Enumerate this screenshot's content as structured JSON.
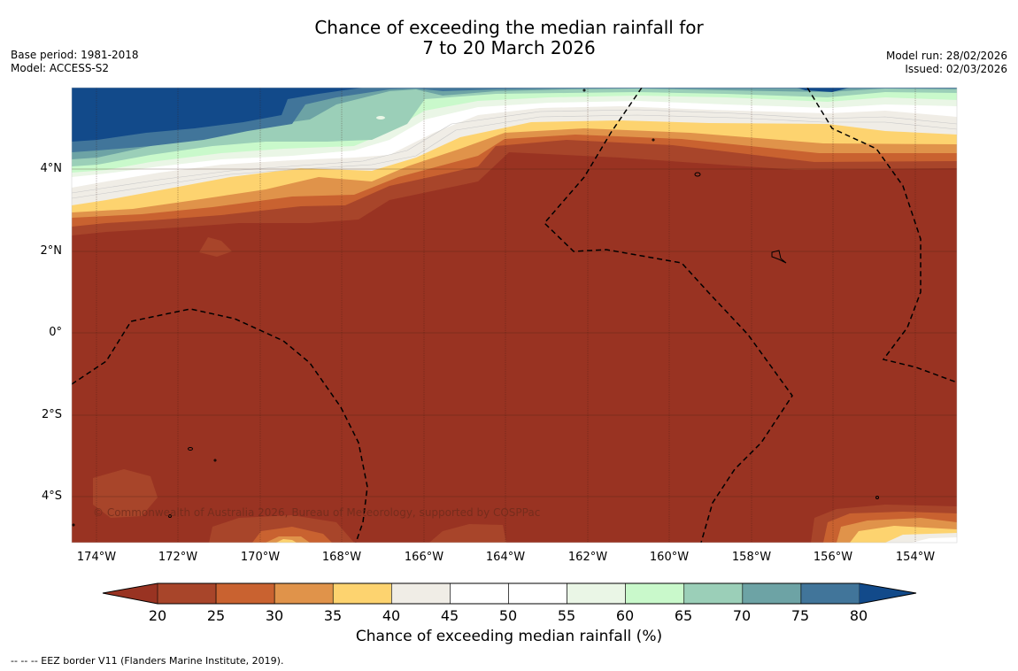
{
  "title": {
    "line1": "Chance of exceeding the median rainfall for",
    "line2": "7 to 20 March 2026"
  },
  "meta_left": {
    "base_period": "Base period: 1981-2018",
    "model": "Model: ACCESS-S2"
  },
  "meta_right": {
    "model_run": "Model run: 28/02/2026",
    "issued": "Issued: 02/03/2026"
  },
  "map": {
    "lat_labels": [
      "4°N",
      "2°N",
      "0°",
      "2°S",
      "4°S"
    ],
    "lon_labels": [
      "174°W",
      "172°W",
      "170°W",
      "168°W",
      "166°W",
      "164°W",
      "162°W",
      "160°W",
      "158°W",
      "156°W",
      "154°W"
    ],
    "copyright": "© Commonwealth of Australia 2026, Bureau of Meteorology, supported by COSPPac"
  },
  "colorbar": {
    "title": "Chance of exceeding median rainfall (%)",
    "ticks": [
      "20",
      "25",
      "30",
      "35",
      "40",
      "45",
      "50",
      "55",
      "60",
      "65",
      "70",
      "75",
      "80"
    ],
    "colors": [
      "#a8452a",
      "#c96230",
      "#e0934a",
      "#fdd36f",
      "#f0ede6",
      "#ffffff",
      "#ffffff",
      "#eaf6e6",
      "#c9f9cb",
      "#9bcfb8",
      "#6da3a5",
      "#41759a"
    ],
    "under_color": "#993322",
    "over_color": "#124a8a"
  },
  "footnote": "--  --  -- EEZ border V11 (Flanders Marine Institute, 2019)."
}
